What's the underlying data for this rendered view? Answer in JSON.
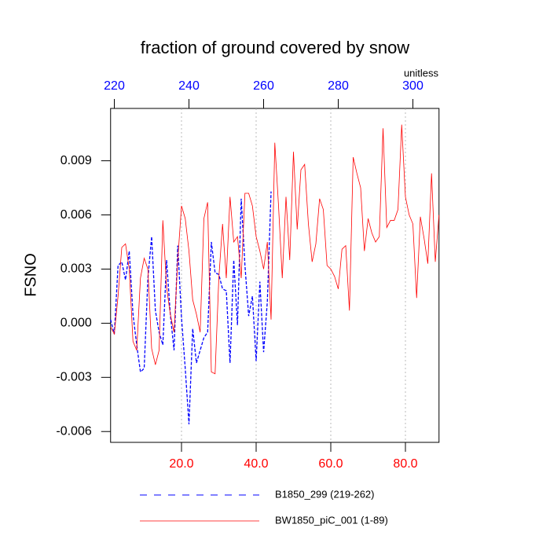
{
  "chart_data": {
    "type": "line",
    "title": "fraction of ground covered by snow",
    "ylabel": "FSNO",
    "x2unit": "unitless",
    "xlim": [
      1,
      89
    ],
    "x2lim": [
      219,
      307
    ],
    "ylim": [
      -0.0066,
      0.0119
    ],
    "xticks": [
      {
        "value": 20,
        "label": "20.0"
      },
      {
        "value": 40,
        "label": "40.0"
      },
      {
        "value": 60,
        "label": "60.0"
      },
      {
        "value": 80,
        "label": "80.0"
      }
    ],
    "x2ticks": [
      220,
      240,
      260,
      280,
      300
    ],
    "yticks": [
      -0.006,
      -0.003,
      {
        "value": 0,
        "label": "0.000"
      },
      0.003,
      0.006,
      0.009
    ],
    "xtick_color": "#ff0000",
    "x2tick_color": "#0000ff",
    "grid": true,
    "series": [
      {
        "name": "B1850_299 (219-262)",
        "color": "#0000ff",
        "style": "dashed",
        "axis": "x2",
        "x": [
          219,
          220,
          221,
          222,
          223,
          224,
          225,
          226,
          227,
          228,
          229,
          230,
          231,
          232,
          233,
          234,
          235,
          236,
          237,
          238,
          239,
          240,
          241,
          242,
          243,
          244,
          245,
          246,
          247,
          248,
          249,
          250,
          251,
          252,
          253,
          254,
          255,
          256,
          257,
          258,
          259,
          260,
          261,
          262
        ],
        "values": [
          0.0002,
          -0.0006,
          0.0032,
          0.0034,
          0.0024,
          0.004,
          0.0005,
          -0.0012,
          -0.0027,
          -0.0025,
          0.0025,
          0.0048,
          0.0007,
          -0.0005,
          -0.0012,
          0.0035,
          0.0005,
          -0.0015,
          0.0043,
          0.0003,
          -0.0025,
          -0.0056,
          -0.0003,
          -0.0022,
          -0.0015,
          -0.0008,
          -0.0005,
          0.0045,
          0.0028,
          0.0027,
          0.0019,
          0.0018,
          -0.0022,
          0.0035,
          -0.0001,
          0.0069,
          0.0032,
          0.0004,
          0.0015,
          -0.0021,
          0.0023,
          -0.0016,
          0.0012,
          0.0073
        ]
      },
      {
        "name": "BW1850_piC_001 (1-89)",
        "color": "#ff0000",
        "style": "solid",
        "axis": "x",
        "x": [
          1,
          2,
          3,
          4,
          5,
          6,
          7,
          8,
          9,
          10,
          11,
          12,
          13,
          14,
          15,
          16,
          17,
          18,
          19,
          20,
          21,
          22,
          23,
          24,
          25,
          26,
          27,
          28,
          29,
          30,
          31,
          32,
          33,
          34,
          35,
          36,
          37,
          38,
          39,
          40,
          41,
          42,
          43,
          44,
          45,
          46,
          47,
          48,
          49,
          50,
          51,
          52,
          53,
          54,
          55,
          56,
          57,
          58,
          59,
          60,
          61,
          62,
          63,
          64,
          65,
          66,
          67,
          68,
          69,
          70,
          71,
          72,
          73,
          74,
          75,
          76,
          77,
          78,
          79,
          80,
          81,
          82,
          83,
          84,
          85,
          86,
          87,
          88,
          89
        ],
        "values": [
          -0.0002,
          -0.0006,
          0.0015,
          0.0042,
          0.0044,
          0.003,
          -0.001,
          -0.0015,
          0.0025,
          0.0036,
          0.003,
          -0.0014,
          -0.0023,
          -0.0015,
          0.0057,
          0.002,
          0.0005,
          -0.0005,
          0.0035,
          0.0065,
          0.0058,
          0.004,
          0.0013,
          0.0005,
          -0.0005,
          0.0058,
          0.0067,
          -0.0027,
          -0.0028,
          0.0025,
          0.0055,
          0.0025,
          0.007,
          0.0045,
          0.0048,
          0.0025,
          0.0072,
          0.0072,
          0.0065,
          0.0048,
          0.004,
          0.003,
          0.0045,
          0.0002,
          0.01,
          0.0065,
          0.0025,
          0.007,
          0.0035,
          0.0095,
          0.0052,
          0.0085,
          0.0088,
          0.0055,
          0.0034,
          0.0044,
          0.0069,
          0.0063,
          0.0032,
          0.003,
          0.0026,
          0.0019,
          0.0041,
          0.0043,
          0.0007,
          0.0092,
          0.0083,
          0.0075,
          0.004,
          0.0058,
          0.005,
          0.0045,
          0.0048,
          0.0108,
          0.0053,
          0.0057,
          0.0057,
          0.0063,
          0.011,
          0.007,
          0.006,
          0.0055,
          0.0014,
          0.0059,
          0.0047,
          0.0033,
          0.0083,
          0.0034,
          0.006
        ]
      }
    ]
  }
}
